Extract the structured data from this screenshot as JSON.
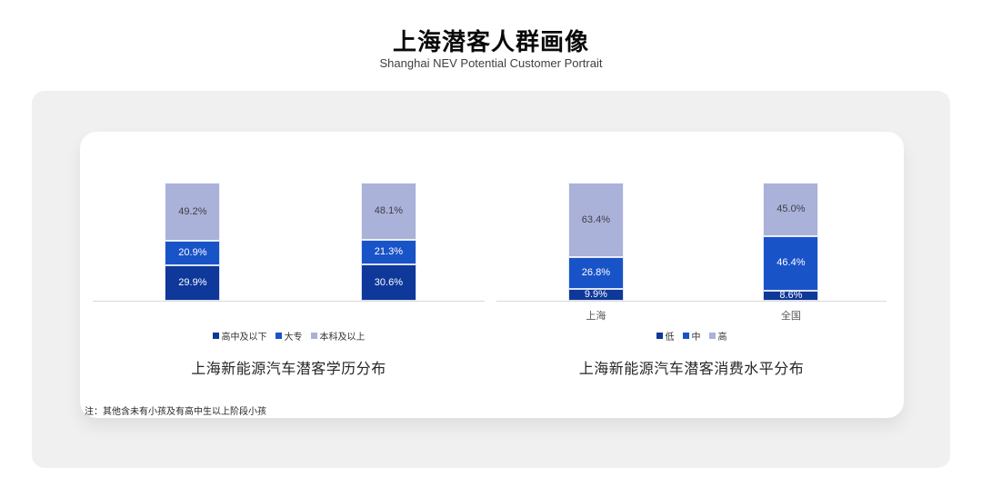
{
  "page": {
    "title": "上海潜客人群画像",
    "subtitle": "Shanghai NEV Potential Customer Portrait",
    "note": "注：其他含未有小孩及有高中生以上阶段小孩"
  },
  "colors": {
    "navy": "#0E3899",
    "royal": "#1953C8",
    "lavender": "#AAB2DA",
    "panel_bg": "#F0F0F1",
    "card_bg": "#FFFFFF",
    "axis": "#D9D9D9",
    "label_on_light": "#3F3F46",
    "label_on_dark": "#FFFFFF"
  },
  "chart_data": [
    {
      "type": "bar",
      "stacked": true,
      "title": "上海新能源汽车潜客学历分布",
      "categories": [
        "",
        ""
      ],
      "series": [
        {
          "name": "高中及以下",
          "color_key": "navy",
          "label_color": "#FFFFFF",
          "values": [
            29.9,
            30.6
          ]
        },
        {
          "name": "大专",
          "color_key": "royal",
          "label_color": "#FFFFFF",
          "values": [
            20.9,
            21.3
          ]
        },
        {
          "name": "本科及以上",
          "color_key": "lavender",
          "label_color": "#3F3F46",
          "values": [
            49.2,
            48.1
          ]
        }
      ],
      "ylim": [
        0,
        100
      ],
      "grid": false,
      "legend_position": "bottom",
      "value_label_format": "0.0%"
    },
    {
      "type": "bar",
      "stacked": true,
      "title": "上海新能源汽车潜客消费水平分布",
      "categories": [
        "上海",
        "全国"
      ],
      "series": [
        {
          "name": "低",
          "color_key": "navy",
          "label_color": "#FFFFFF",
          "values": [
            9.9,
            8.6
          ]
        },
        {
          "name": "中",
          "color_key": "royal",
          "label_color": "#FFFFFF",
          "values": [
            26.8,
            46.4
          ]
        },
        {
          "name": "高",
          "color_key": "lavender",
          "label_color": "#3F3F46",
          "values": [
            63.4,
            45.0
          ]
        }
      ],
      "ylim": [
        0,
        100
      ],
      "grid": false,
      "legend_position": "bottom",
      "value_label_format": "0.0%"
    }
  ]
}
